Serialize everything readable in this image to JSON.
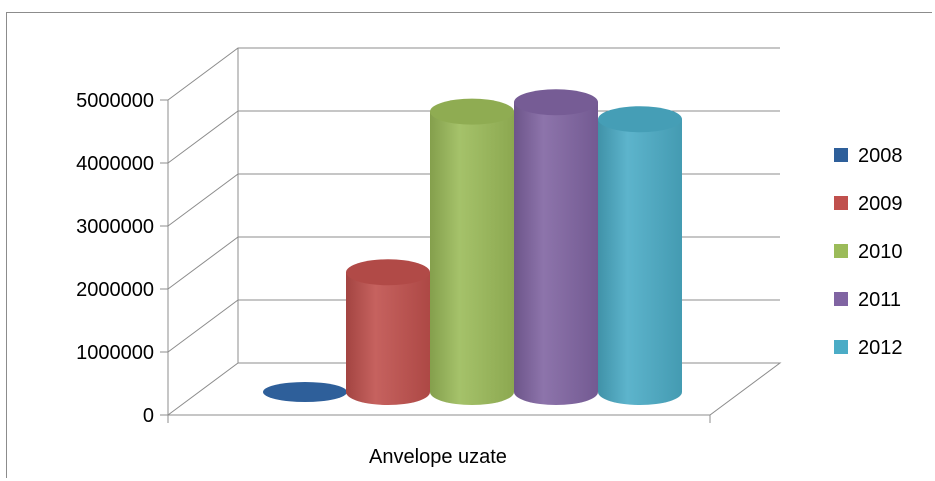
{
  "chart_data": {
    "type": "bar",
    "style": "3d-cylinder",
    "categories": [
      "Anvelope uzate"
    ],
    "series": [
      {
        "name": "2008",
        "values": [
          30000
        ],
        "color": "#2e5f9a"
      },
      {
        "name": "2009",
        "values": [
          1900000
        ],
        "color": "#c0504d"
      },
      {
        "name": "2010",
        "values": [
          4450000
        ],
        "color": "#9bbb59"
      },
      {
        "name": "2011",
        "values": [
          4600000
        ],
        "color": "#8064a2"
      },
      {
        "name": "2012",
        "values": [
          4330000
        ],
        "color": "#4bacc6"
      }
    ],
    "title": "",
    "xlabel": "",
    "ylabel": "",
    "ylim": [
      0,
      5000000
    ],
    "yticks": [
      "0",
      "1000000",
      "2000000",
      "3000000",
      "4000000",
      "5000000"
    ],
    "grid": true,
    "legend": "right"
  }
}
